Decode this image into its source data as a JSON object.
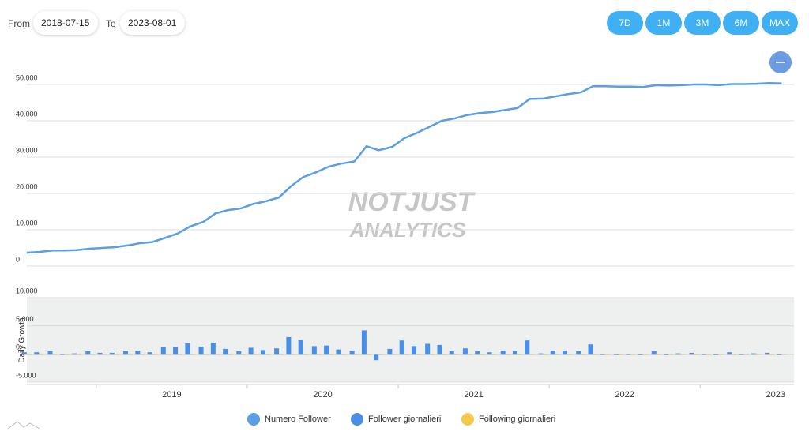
{
  "controls": {
    "from_label": "From",
    "from": "2018-07-15",
    "to_label": "To",
    "to": "2023-08-01",
    "ranges": [
      "7D",
      "1M",
      "3M",
      "6M",
      "MAX"
    ]
  },
  "watermark": [
    "NOTJUST",
    "ANALYTICS"
  ],
  "chart_data": [
    {
      "type": "line",
      "x": [
        2018.54,
        2018.62,
        2018.71,
        2018.79,
        2018.87,
        2018.96,
        2019.04,
        2019.12,
        2019.21,
        2019.29,
        2019.37,
        2019.46,
        2019.54,
        2019.62,
        2019.71,
        2019.79,
        2019.87,
        2019.96,
        2020.04,
        2020.12,
        2020.21,
        2020.29,
        2020.37,
        2020.46,
        2020.54,
        2020.62,
        2020.71,
        2020.79,
        2020.87,
        2020.96,
        2021.04,
        2021.12,
        2021.21,
        2021.29,
        2021.37,
        2021.46,
        2021.54,
        2021.62,
        2021.71,
        2021.79,
        2021.87,
        2021.96,
        2022.04,
        2022.12,
        2022.21,
        2022.29,
        2022.37,
        2022.46,
        2022.54,
        2022.62,
        2022.71,
        2022.79,
        2022.87,
        2022.96,
        2023.04,
        2023.12,
        2023.21,
        2023.29,
        2023.37,
        2023.46,
        2023.54
      ],
      "series": [
        {
          "name": "Numero Follower",
          "color": "#5b9ee1",
          "values": [
            3700,
            3900,
            4300,
            4300,
            4400,
            4800,
            5000,
            5200,
            5700,
            6300,
            6600,
            7800,
            9000,
            10900,
            12200,
            14500,
            15400,
            15900,
            17100,
            17800,
            18900,
            22000,
            24500,
            25900,
            27400,
            28200,
            28800,
            33000,
            31900,
            32800,
            35200,
            36600,
            38400,
            40000,
            40600,
            41600,
            42100,
            42400,
            43000,
            43500,
            46000,
            46100,
            46700,
            47300,
            47800,
            49500,
            49500,
            49400,
            49400,
            49300,
            49800,
            49700,
            49800,
            50000,
            50000,
            49800,
            50100,
            50100,
            50200,
            50400,
            50300
          ]
        }
      ],
      "xlim": [
        2018.54,
        2023.58
      ],
      "ylim": [
        0,
        50000
      ],
      "yticks": [
        0,
        {
          "value": 10000,
          "label": "10.000"
        },
        {
          "value": 20000,
          "label": "20.000"
        },
        {
          "value": 30000,
          "label": "30.000"
        },
        {
          "value": 40000,
          "label": "40.000"
        },
        {
          "value": 50000,
          "label": "50.000"
        }
      ],
      "grid": true
    },
    {
      "type": "bar",
      "y_label": "Daily Growth",
      "x": [
        2018.54,
        2018.62,
        2018.71,
        2018.79,
        2018.87,
        2018.96,
        2019.04,
        2019.12,
        2019.21,
        2019.29,
        2019.37,
        2019.46,
        2019.54,
        2019.62,
        2019.71,
        2019.79,
        2019.87,
        2019.96,
        2020.04,
        2020.12,
        2020.21,
        2020.29,
        2020.37,
        2020.46,
        2020.54,
        2020.62,
        2020.71,
        2020.79,
        2020.87,
        2020.96,
        2021.04,
        2021.12,
        2021.21,
        2021.29,
        2021.37,
        2021.46,
        2021.54,
        2021.62,
        2021.71,
        2021.79,
        2021.87,
        2021.96,
        2022.04,
        2022.12,
        2022.21,
        2022.29,
        2022.37,
        2022.46,
        2022.54,
        2022.62,
        2022.71,
        2022.79,
        2022.87,
        2022.96,
        2023.04,
        2023.12,
        2023.21,
        2023.29,
        2023.37,
        2023.46,
        2023.54
      ],
      "series": [
        {
          "name": "Follower giornalieri",
          "color": "#4a8fe7",
          "values": [
            300,
            300,
            500,
            0,
            100,
            500,
            200,
            200,
            500,
            600,
            300,
            1200,
            1200,
            1900,
            1300,
            2000,
            900,
            500,
            1100,
            700,
            1000,
            3000,
            2500,
            1400,
            1500,
            800,
            600,
            4200,
            -1100,
            900,
            2400,
            1400,
            1800,
            1600,
            500,
            1000,
            500,
            300,
            600,
            500,
            2400,
            100,
            600,
            600,
            500,
            1700,
            0,
            -100,
            0,
            -100,
            500,
            -100,
            100,
            200,
            0,
            -100,
            300,
            0,
            100,
            200,
            -100
          ]
        },
        {
          "name": "Following giornalieri",
          "color": "#f2c94c",
          "values": [
            20,
            10,
            20,
            30,
            10,
            20,
            10,
            20,
            10,
            20,
            10,
            20,
            10,
            20,
            10,
            20,
            10,
            20,
            10,
            20,
            10,
            20,
            10,
            20,
            10,
            20,
            10,
            20,
            10,
            20,
            10,
            20,
            10,
            20,
            10,
            20,
            10,
            20,
            10,
            20,
            10,
            20,
            10,
            20,
            10,
            20,
            30,
            30,
            20,
            30,
            20,
            30,
            30,
            20,
            30,
            30,
            20,
            30,
            30,
            20,
            30
          ]
        }
      ],
      "xlim": [
        2018.54,
        2023.58
      ],
      "ylim": [
        -5000,
        10000
      ],
      "yticks": [
        {
          "value": -5000,
          "label": "-5.000"
        },
        0,
        {
          "value": 5000,
          "label": "5.000"
        },
        {
          "value": 10000,
          "label": "10.000"
        }
      ],
      "xticks": [
        2019,
        2020,
        2021,
        2022,
        2023
      ],
      "grid": true
    }
  ]
}
